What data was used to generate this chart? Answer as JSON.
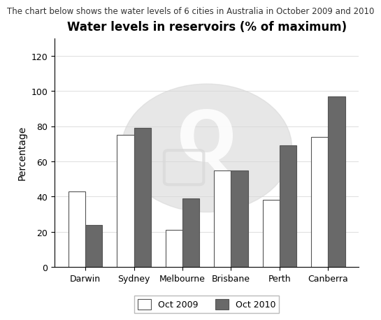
{
  "title": "Water levels in reservoirs (% of maximum)",
  "subtitle": "The chart below shows the water levels of 6 cities in Australia in October 2009 and 2010",
  "ylabel": "Percentage",
  "cities": [
    "Darwin",
    "Sydney",
    "Melbourne",
    "Brisbane",
    "Perth",
    "Canberra"
  ],
  "oct2009": [
    43,
    75,
    21,
    55,
    38,
    74
  ],
  "oct2010": [
    24,
    79,
    39,
    55,
    69,
    97
  ],
  "bar_color_2009": "#ffffff",
  "bar_color_2010": "#696969",
  "bar_edge_color": "#555555",
  "ylim": [
    0,
    130
  ],
  "yticks": [
    0,
    20,
    40,
    60,
    80,
    100,
    120
  ],
  "legend_labels": [
    "Oct 2009",
    "Oct 2010"
  ],
  "bar_width": 0.35,
  "background_color": "#ffffff",
  "title_fontsize": 12,
  "subtitle_fontsize": 8.5,
  "axis_label_fontsize": 10,
  "tick_fontsize": 9,
  "legend_fontsize": 9,
  "watermark_color": "#d8d8d8",
  "watermark_alpha": 0.6
}
